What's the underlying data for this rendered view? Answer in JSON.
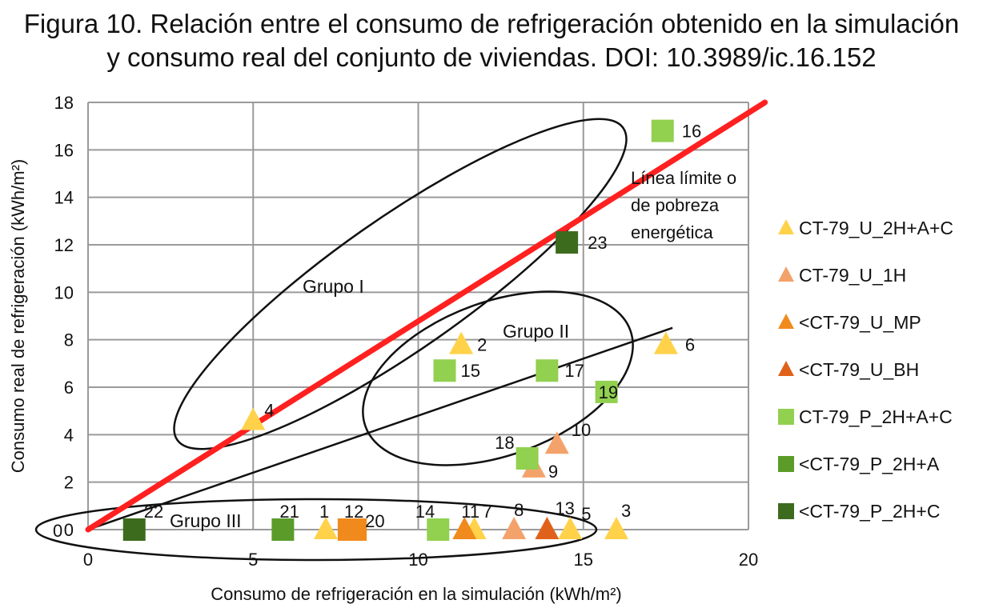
{
  "title_line1": "Figura 10. Relación entre el consumo de refrigeración obtenido en la simulación",
  "title_line2": "y consumo real del conjunto de viviendas. DOI: 10.3989/ic.16.152",
  "chart_data": {
    "type": "scatter",
    "xlabel": "Consumo de refrigeración en la simulación (kWh/m²)",
    "ylabel": "Consumo real de refrigeración (kWh/m²)",
    "xlim": [
      0,
      20
    ],
    "ylim": [
      0,
      18
    ],
    "x_ticks": [
      "0",
      "5",
      "10",
      "15",
      "20"
    ],
    "y_ticks": [
      "0",
      "2",
      "4",
      "6",
      "8",
      "10",
      "12",
      "14",
      "16",
      "18"
    ],
    "grid": true,
    "legend_position": "right",
    "series": [
      {
        "name": "CT-79_U_2H+A+C",
        "marker": "triangle",
        "color": "#ffd24a",
        "points": [
          {
            "label": "1",
            "x": 7.2,
            "y": 0
          },
          {
            "label": "2",
            "x": 11.3,
            "y": 7.8
          },
          {
            "label": "3",
            "x": 16.0,
            "y": 0
          },
          {
            "label": "4",
            "x": 5.0,
            "y": 4.6
          },
          {
            "label": "5",
            "x": 14.6,
            "y": 0
          },
          {
            "label": "6",
            "x": 17.5,
            "y": 7.8
          },
          {
            "label": "7",
            "x": 11.7,
            "y": 0
          }
        ]
      },
      {
        "name": "CT-79_U_1H",
        "marker": "triangle",
        "color": "#f4a26b",
        "points": [
          {
            "label": "8",
            "x": 12.9,
            "y": 0
          },
          {
            "label": "9",
            "x": 13.5,
            "y": 2.6
          },
          {
            "label": "10",
            "x": 14.2,
            "y": 3.6
          }
        ]
      },
      {
        "name": "<CT-79_U_MP",
        "marker": "triangle",
        "color": "#f08a1c",
        "points": [
          {
            "label": "11",
            "x": 11.4,
            "y": 0
          }
        ]
      },
      {
        "name": "<CT-79_U_BH",
        "marker": "triangle",
        "color": "#e0621a",
        "points": [
          {
            "label": "13",
            "x": 13.9,
            "y": 0
          }
        ]
      },
      {
        "name": "CT-79_P_2H+A+C",
        "marker": "square",
        "color": "#92d050",
        "points": [
          {
            "label": "14",
            "x": 10.6,
            "y": 0
          },
          {
            "label": "15",
            "x": 10.8,
            "y": 6.7
          },
          {
            "label": "16",
            "x": 17.4,
            "y": 16.8
          },
          {
            "label": "17",
            "x": 13.9,
            "y": 6.7
          },
          {
            "label": "18",
            "x": 13.3,
            "y": 3.0
          },
          {
            "label": "19",
            "x": 15.7,
            "y": 5.8
          }
        ]
      },
      {
        "name": "<CT-79_P_2H+A",
        "marker": "square",
        "color": "#5b9b2a",
        "points": [
          {
            "label": "21",
            "x": 5.9,
            "y": 0
          }
        ]
      },
      {
        "name": "<CT-79_P_2H+C",
        "marker": "square",
        "color": "#3d6b1e",
        "points": [
          {
            "label": "22",
            "x": 1.4,
            "y": 0
          },
          {
            "label": "23",
            "x": 14.5,
            "y": 12.1
          }
        ]
      }
    ],
    "extra_points": [
      {
        "label": "12",
        "x": 7.9,
        "y": 0,
        "marker": "square",
        "color": "#f08a1c"
      },
      {
        "label": "20",
        "x": 8.1,
        "y": 0,
        "marker": "square",
        "color": "#f08a1c"
      }
    ],
    "limit_line": {
      "from": [
        0,
        0
      ],
      "to": [
        20.5,
        18.0
      ],
      "color": "#ff2020"
    },
    "trend_line": {
      "from": [
        0,
        0
      ],
      "to": [
        17.7,
        8.5
      ],
      "color": "#111111"
    },
    "annotations": {
      "limit_text": [
        "Línea límite o",
        "de pobreza",
        "energética"
      ],
      "groups": [
        "Grupo I",
        "Grupo II",
        "Grupo III"
      ]
    }
  }
}
